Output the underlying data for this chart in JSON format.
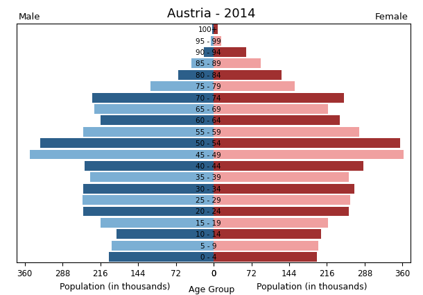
{
  "title": "Austria - 2014",
  "male_label": "Male",
  "female_label": "Female",
  "xlabel_left": "Population (in thousands)",
  "xlabel_center": "Age Group",
  "xlabel_right": "Population (in thousands)",
  "age_groups": [
    "0 - 4",
    "5 - 9",
    "10 - 14",
    "15 - 19",
    "20 - 24",
    "25 - 29",
    "30 - 34",
    "35 - 39",
    "40 - 44",
    "45 - 49",
    "50 - 54",
    "55 - 59",
    "60 - 64",
    "65 - 69",
    "70 - 74",
    "75 - 79",
    "80 - 84",
    "85 - 89",
    "90 - 94",
    "95 - 99",
    "100+"
  ],
  "male_values": [
    200,
    195,
    185,
    215,
    248,
    250,
    248,
    235,
    246,
    350,
    330,
    248,
    215,
    228,
    232,
    120,
    68,
    42,
    18,
    6,
    3
  ],
  "female_values": [
    197,
    200,
    205,
    218,
    258,
    260,
    268,
    258,
    285,
    362,
    355,
    278,
    240,
    218,
    248,
    155,
    130,
    90,
    62,
    14,
    8
  ],
  "male_dark_color": "#2c5f8a",
  "male_light_color": "#7bafd4",
  "female_dark_color": "#a03030",
  "female_light_color": "#f0a0a0",
  "xlim": 375,
  "xticks": [
    0,
    72,
    144,
    216,
    288,
    360
  ],
  "bg_color": "#ffffff",
  "title_fontsize": 13,
  "axis_label_fontsize": 9,
  "tick_fontsize": 8.5,
  "age_label_fontsize": 7.5
}
